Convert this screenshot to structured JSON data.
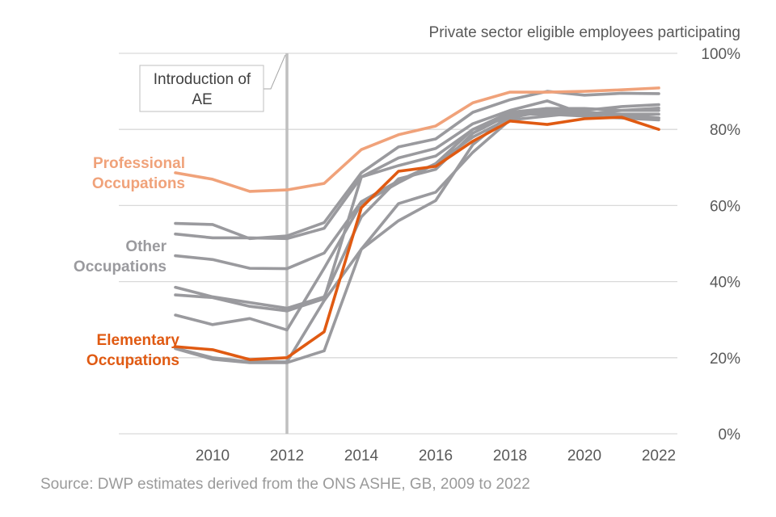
{
  "chart_data": {
    "type": "line",
    "title": "",
    "ylabel": "Private sector eligible employees participating",
    "xlabel": "",
    "source": "Source: DWP estimates derived from the ONS ASHE, GB, 2009 to 2022",
    "x": [
      2009,
      2010,
      2011,
      2012,
      2013,
      2014,
      2015,
      2016,
      2017,
      2018,
      2019,
      2020,
      2021,
      2022
    ],
    "x_ticks": [
      "2010",
      "2012",
      "2014",
      "2016",
      "2018",
      "2020",
      "2022"
    ],
    "x_tick_values": [
      2010,
      2012,
      2014,
      2016,
      2018,
      2020,
      2022
    ],
    "ylim": [
      0,
      100
    ],
    "y_ticks": [
      "0%",
      "20%",
      "40%",
      "60%",
      "80%",
      "100%"
    ],
    "y_tick_values": [
      0,
      20,
      40,
      60,
      80,
      100
    ],
    "grid": true,
    "y_axis_side": "right",
    "annotation": {
      "x": 2012,
      "text_line1": "Introduction of",
      "text_line2": "AE"
    },
    "colors": {
      "professional": "#f0a27a",
      "elementary": "#e05a12",
      "other": "#9a9a9e",
      "marker_line": "#bfbfbf"
    },
    "labels": {
      "professional": [
        "Professional",
        "Occupations"
      ],
      "other": [
        "Other",
        "Occupations"
      ],
      "elementary": [
        "Elementary",
        "Occupations"
      ]
    },
    "series": [
      {
        "name": "Other Occupations 1",
        "group": "other",
        "values": [
          55.3,
          55.0,
          51.3,
          52.0,
          55.5,
          68.6,
          75.4,
          77.5,
          84.5,
          87.8,
          90.0,
          89.0,
          89.5,
          89.4
        ]
      },
      {
        "name": "Other Occupations 2",
        "group": "other",
        "values": [
          52.5,
          51.5,
          51.5,
          51.3,
          54.0,
          67.5,
          72.5,
          75.0,
          81.5,
          85.0,
          87.5,
          84.0,
          85.0,
          85.6
        ]
      },
      {
        "name": "Other Occupations 3",
        "group": "other",
        "values": [
          46.8,
          45.8,
          43.5,
          43.4,
          47.5,
          61.0,
          66.5,
          71.0,
          78.0,
          83.0,
          85.0,
          85.0,
          86.0,
          86.5
        ]
      },
      {
        "name": "Other Occupations 4",
        "group": "other",
        "values": [
          38.5,
          36.0,
          34.5,
          33.0,
          36.0,
          57.0,
          67.0,
          69.5,
          79.0,
          84.0,
          85.5,
          85.5,
          85.0,
          85.0
        ]
      },
      {
        "name": "Other Occupations 5",
        "group": "other",
        "values": [
          36.5,
          35.8,
          33.5,
          32.3,
          35.5,
          67.5,
          70.5,
          73.0,
          80.0,
          83.5,
          84.5,
          84.0,
          84.0,
          84.0
        ]
      },
      {
        "name": "Other Occupations 6",
        "group": "other",
        "values": [
          31.2,
          28.7,
          30.3,
          27.3,
          43.5,
          60.5,
          66.0,
          71.0,
          80.0,
          84.5,
          85.5,
          84.5,
          83.5,
          83.0
        ]
      },
      {
        "name": "Other Occupations 7",
        "group": "other",
        "values": [
          22.4,
          19.6,
          18.7,
          18.7,
          21.8,
          48.5,
          60.5,
          63.5,
          74.0,
          82.5,
          83.5,
          84.5,
          84.0,
          83.0
        ]
      },
      {
        "name": "Other Occupations 8",
        "group": "other",
        "values": [
          22.5,
          20.0,
          18.9,
          18.9,
          35.0,
          48.5,
          56.0,
          61.3,
          76.0,
          84.0,
          84.0,
          83.5,
          83.0,
          82.5
        ]
      },
      {
        "name": "Professional Occupations",
        "group": "professional",
        "values": [
          68.6,
          66.9,
          63.7,
          64.1,
          65.8,
          74.7,
          78.6,
          80.9,
          87.0,
          89.8,
          89.8,
          90.0,
          90.4,
          90.9
        ]
      },
      {
        "name": "Elementary Occupations",
        "group": "elementary",
        "values": [
          22.9,
          22.1,
          19.5,
          20.0,
          26.8,
          59.4,
          69.0,
          70.3,
          76.9,
          82.2,
          81.3,
          82.8,
          83.2,
          80.0
        ]
      }
    ]
  }
}
